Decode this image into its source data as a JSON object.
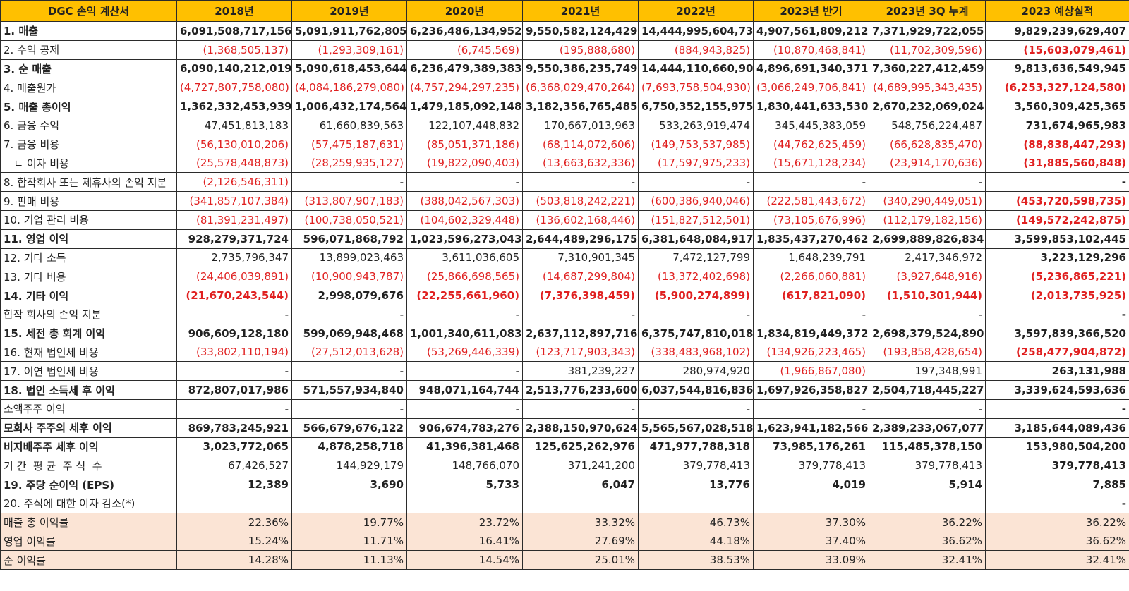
{
  "table": {
    "corner": "DGC 손익 계산서",
    "columns": [
      "2018년",
      "2019년",
      "2020년",
      "2021년",
      "2022년",
      "2023년 반기",
      "2023년 3Q 누계",
      "2023 예상실적"
    ],
    "rows": [
      {
        "label": "1. 매출",
        "style": "bold",
        "values": [
          "6,091,508,717,156",
          "5,091,911,762,805",
          "6,236,486,134,952",
          "9,550,582,124,429",
          "14,444,995,604,730",
          "4,907,561,809,212",
          "7,371,929,722,055",
          "9,829,239,629,407"
        ]
      },
      {
        "label": "2. 수익 공제",
        "style": "normal",
        "values": [
          "(1,368,505,137)",
          "(1,293,309,161)",
          "(6,745,569)",
          "(195,888,680)",
          "(884,943,825)",
          "(10,870,468,841)",
          "(11,702,309,596)",
          "(15,603,079,461)"
        ]
      },
      {
        "label": "3. 순 매출",
        "style": "bold",
        "values": [
          "6,090,140,212,019",
          "5,090,618,453,644",
          "6,236,479,389,383",
          "9,550,386,235,749",
          "14,444,110,660,905",
          "4,896,691,340,371",
          "7,360,227,412,459",
          "9,813,636,549,945"
        ]
      },
      {
        "label": "4. 매출원가",
        "style": "normal",
        "values": [
          "(4,727,807,758,080)",
          "(4,084,186,279,080)",
          "(4,757,294,297,235)",
          "(6,368,029,470,264)",
          "(7,693,758,504,930)",
          "(3,066,249,706,841)",
          "(4,689,995,343,435)",
          "(6,253,327,124,580)"
        ]
      },
      {
        "label": "5. 매출 총이익",
        "style": "bold",
        "values": [
          "1,362,332,453,939",
          "1,006,432,174,564",
          "1,479,185,092,148",
          "3,182,356,765,485",
          "6,750,352,155,975",
          "1,830,441,633,530",
          "2,670,232,069,024",
          "3,560,309,425,365"
        ]
      },
      {
        "label": "6. 금융 수익",
        "style": "normal",
        "values": [
          "47,451,813,183",
          "61,660,839,563",
          "122,107,448,832",
          "170,667,013,963",
          "533,263,919,474",
          "345,445,383,059",
          "548,756,224,487",
          "731,674,965,983"
        ]
      },
      {
        "label": "7. 금융 비용",
        "style": "normal",
        "values": [
          "(56,130,010,206)",
          "(57,475,187,631)",
          "(85,051,371,186)",
          "(68,114,072,606)",
          "(149,753,537,985)",
          "(44,762,625,459)",
          "(66,628,835,470)",
          "(88,838,447,293)"
        ]
      },
      {
        "label": "   ㄴ 이자 비용",
        "style": "normal",
        "values": [
          "(25,578,448,873)",
          "(28,259,935,127)",
          "(19,822,090,403)",
          "(13,663,632,336)",
          "(17,597,975,233)",
          "(15,671,128,234)",
          "(23,914,170,636)",
          "(31,885,560,848)"
        ]
      },
      {
        "label": "8. 합작회사 또는 제휴사의 손익 지분",
        "style": "normal",
        "values": [
          "(2,126,546,311)",
          "-",
          "-",
          "-",
          "-",
          "-",
          "-",
          "-"
        ]
      },
      {
        "label": "9. 판매 비용",
        "style": "normal",
        "values": [
          "(341,857,107,384)",
          "(313,807,907,183)",
          "(388,042,567,303)",
          "(503,818,242,221)",
          "(600,386,940,046)",
          "(222,581,443,672)",
          "(340,290,449,051)",
          "(453,720,598,735)"
        ]
      },
      {
        "label": "10. 기업 관리 비용",
        "style": "normal",
        "values": [
          "(81,391,231,497)",
          "(100,738,050,521)",
          "(104,602,329,448)",
          "(136,602,168,446)",
          "(151,827,512,501)",
          "(73,105,676,996)",
          "(112,179,182,156)",
          "(149,572,242,875)"
        ]
      },
      {
        "label": "11. 영업 이익",
        "style": "bold",
        "values": [
          "928,279,371,724",
          "596,071,868,792",
          "1,023,596,273,043",
          "2,644,489,296,175",
          "6,381,648,084,917",
          "1,835,437,270,462",
          "2,699,889,826,834",
          "3,599,853,102,445"
        ]
      },
      {
        "label": "12. 기타 소득",
        "style": "normal",
        "values": [
          "2,735,796,347",
          "13,899,023,463",
          "3,611,036,605",
          "7,310,901,345",
          "7,472,127,799",
          "1,648,239,791",
          "2,417,346,972",
          "3,223,129,296"
        ]
      },
      {
        "label": "13. 기타 비용",
        "style": "normal",
        "values": [
          "(24,406,039,891)",
          "(10,900,943,787)",
          "(25,866,698,565)",
          "(14,687,299,804)",
          "(13,372,402,698)",
          "(2,266,060,881)",
          "(3,927,648,916)",
          "(5,236,865,221)"
        ]
      },
      {
        "label": "14. 기타 이익",
        "style": "bold",
        "values": [
          "(21,670,243,544)",
          "2,998,079,676",
          "(22,255,661,960)",
          "(7,376,398,459)",
          "(5,900,274,899)",
          "(617,821,090)",
          "(1,510,301,944)",
          "(2,013,735,925)"
        ]
      },
      {
        "label": "합작 회사의 손익 지분",
        "style": "normal",
        "values": [
          "-",
          "-",
          "-",
          "-",
          "-",
          "-",
          "-",
          "-"
        ]
      },
      {
        "label": "15. 세전 총 회계 이익",
        "style": "bold",
        "values": [
          "906,609,128,180",
          "599,069,948,468",
          "1,001,340,611,083",
          "2,637,112,897,716",
          "6,375,747,810,018",
          "1,834,819,449,372",
          "2,698,379,524,890",
          "3,597,839,366,520"
        ]
      },
      {
        "label": "16. 현재 법인세 비용",
        "style": "normal",
        "values": [
          "(33,802,110,194)",
          "(27,512,013,628)",
          "(53,269,446,339)",
          "(123,717,903,343)",
          "(338,483,968,102)",
          "(134,926,223,465)",
          "(193,858,428,654)",
          "(258,477,904,872)"
        ]
      },
      {
        "label": "17. 이연 법인세 비용",
        "style": "normal",
        "values": [
          "-",
          "-",
          "-",
          "381,239,227",
          "280,974,920",
          "(1,966,867,080)",
          "197,348,991",
          "263,131,988"
        ]
      },
      {
        "label": "18. 법인 소득세 후 이익",
        "style": "bold",
        "values": [
          "872,807,017,986",
          "571,557,934,840",
          "948,071,164,744",
          "2,513,776,233,600",
          "6,037,544,816,836",
          "1,697,926,358,827",
          "2,504,718,445,227",
          "3,339,624,593,636"
        ]
      },
      {
        "label": "소액주주 이익",
        "style": "normal",
        "values": [
          "-",
          "-",
          "-",
          "-",
          "-",
          "-",
          "-",
          "-"
        ]
      },
      {
        "label": "모회사 주주의 세후 이익",
        "style": "bold",
        "values": [
          "869,783,245,921",
          "566,679,676,122",
          "906,674,783,276",
          "2,388,150,970,624",
          "5,565,567,028,518",
          "1,623,941,182,566",
          "2,389,233,067,077",
          "3,185,644,089,436"
        ]
      },
      {
        "label": "비지배주주 세후 이익",
        "style": "bold",
        "values": [
          "3,023,772,065",
          "4,878,258,718",
          "41,396,381,468",
          "125,625,262,976",
          "471,977,788,318",
          "73,985,176,261",
          "115,485,378,150",
          "153,980,504,200"
        ]
      },
      {
        "label": "기 간  평 균  주 식  수",
        "style": "normal",
        "values": [
          "67,426,527",
          "144,929,179",
          "148,766,070",
          "371,241,200",
          "379,778,413",
          "379,778,413",
          "379,778,413",
          "379,778,413"
        ]
      },
      {
        "label": "19. 주당 순이익 (EPS)",
        "style": "bold",
        "values": [
          "12,389",
          "3,690",
          "5,733",
          "6,047",
          "13,776",
          "4,019",
          "5,914",
          "7,885"
        ]
      },
      {
        "label": "20. 주식에 대한 이자 감소(*)",
        "style": "normal",
        "values": [
          "",
          "",
          "",
          "",
          "",
          "",
          "",
          "-"
        ]
      },
      {
        "label": "매출 총 이익률",
        "style": "ratio",
        "values": [
          "22.36%",
          "19.77%",
          "23.72%",
          "33.32%",
          "46.73%",
          "37.30%",
          "36.22%",
          "36.22%"
        ]
      },
      {
        "label": "영업 이익률",
        "style": "ratio",
        "values": [
          "15.24%",
          "11.71%",
          "16.41%",
          "27.69%",
          "44.18%",
          "37.40%",
          "36.62%",
          "36.62%"
        ]
      },
      {
        "label": "순 이익률",
        "style": "ratio",
        "values": [
          "14.28%",
          "11.13%",
          "14.54%",
          "25.01%",
          "38.53%",
          "33.09%",
          "32.41%",
          "32.41%"
        ]
      }
    ]
  }
}
